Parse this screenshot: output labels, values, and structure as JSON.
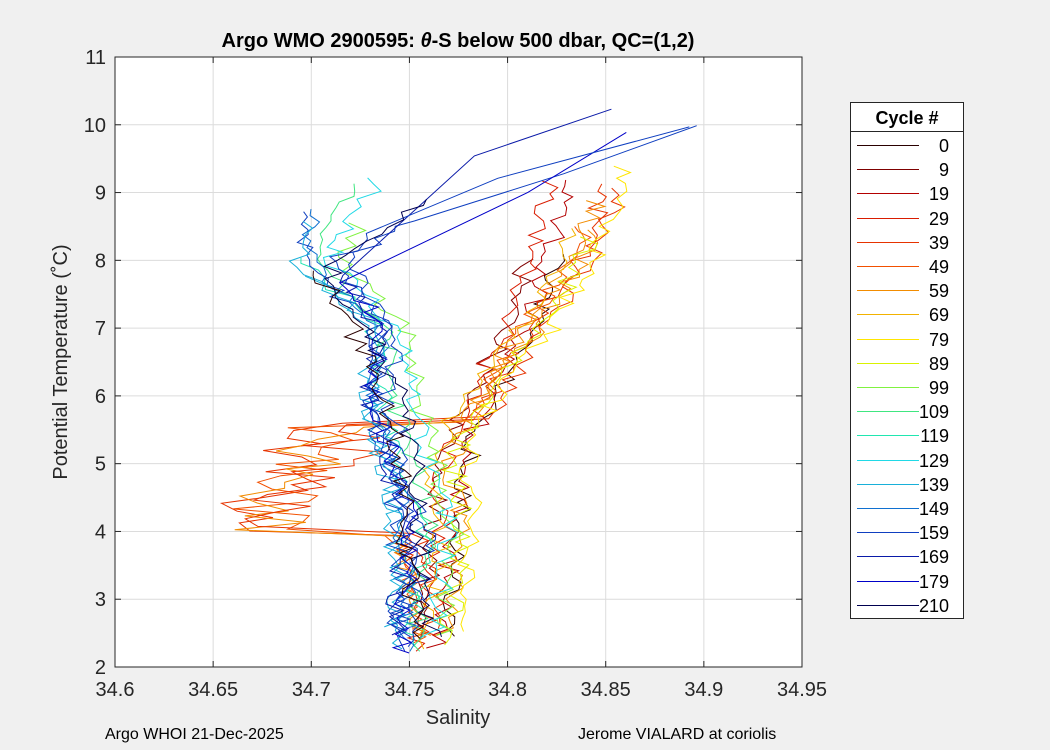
{
  "chart_data": {
    "type": "line",
    "title": "Argo WMO 2900595: θ-S below 500 dbar,  QC=(1,2)",
    "title_parts": {
      "prefix": "Argo WMO 2900595: ",
      "theta": "θ",
      "suffix": "-S below 500 dbar,  QC=(1,2)"
    },
    "xlabel": "Salinity",
    "ylabel": "Potential Temperature (˚C)",
    "xlim": [
      34.6,
      34.95
    ],
    "ylim": [
      2,
      11
    ],
    "grid": true,
    "xticks": [
      "34.6",
      "34.65",
      "34.7",
      "34.75",
      "34.8",
      "34.85",
      "34.9",
      "34.95"
    ],
    "yticks": [
      "2",
      "3",
      "4",
      "5",
      "6",
      "7",
      "8",
      "9",
      "10",
      "11"
    ],
    "legend": {
      "title": "Cycle #",
      "position": "right",
      "entries": [
        "0",
        "9",
        "19",
        "29",
        "39",
        "49",
        "59",
        "69",
        "79",
        "89",
        "99",
        "109",
        "119",
        "129",
        "139",
        "149",
        "159",
        "169",
        "179",
        "210"
      ],
      "colors": [
        "#2a0000",
        "#7f0000",
        "#b30000",
        "#d91c00",
        "#e63300",
        "#f25000",
        "#f28c00",
        "#f2b200",
        "#ffe600",
        "#d9f200",
        "#80f240",
        "#40e680",
        "#20e6b0",
        "#20d9e6",
        "#18b0d9",
        "#1070d0",
        "#0f3fc0",
        "#0a1aa8",
        "#0000c8",
        "#000050"
      ]
    },
    "series_description": "Overlaid theta-S profiles for cycles 0–210 colored by cycle number",
    "annotations": {
      "footer_left": "Argo WHOI 21-Dec-2025",
      "footer_right": "Jerome VIALARD at coriolis"
    }
  }
}
